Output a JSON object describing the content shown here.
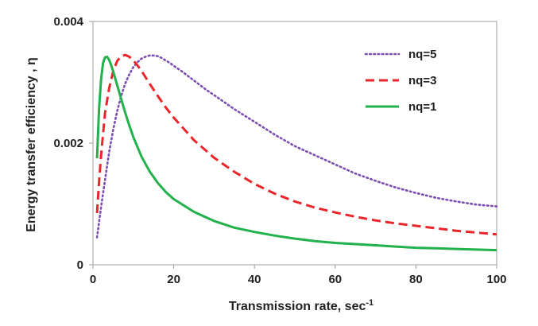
{
  "chart_data": {
    "type": "line",
    "title": "",
    "xlabel": "Transmission rate, sec",
    "xlabel_superscript": "-1",
    "ylabel": "Energy transfer efficiency , η",
    "xlim": [
      0,
      100
    ],
    "ylim": [
      0,
      0.004
    ],
    "x_ticks": [
      0,
      20,
      40,
      60,
      80,
      100
    ],
    "x_tick_labels": [
      "0",
      "20",
      "40",
      "60",
      "80",
      "100"
    ],
    "y_ticks": [
      0,
      0.002,
      0.004
    ],
    "y_tick_labels": [
      "0",
      "0.002",
      "0.004"
    ],
    "grid": false,
    "legend_position": "top-right",
    "series": [
      {
        "name": "nq=5",
        "color": "#7B4FB0",
        "style": "dotted",
        "x": [
          1,
          2,
          3,
          4,
          5,
          6,
          7,
          8,
          9,
          10,
          11,
          12,
          13,
          14,
          15,
          16,
          17,
          18,
          19,
          20,
          22,
          25,
          28,
          30,
          35,
          40,
          45,
          50,
          55,
          60,
          65,
          70,
          75,
          80,
          85,
          90,
          95,
          100
        ],
        "values": [
          0.00045,
          0.00095,
          0.0014,
          0.00185,
          0.00222,
          0.00253,
          0.00278,
          0.00298,
          0.00313,
          0.00325,
          0.00333,
          0.00339,
          0.00342,
          0.00344,
          0.00344,
          0.00343,
          0.0034,
          0.00336,
          0.00332,
          0.00327,
          0.00318,
          0.00303,
          0.00288,
          0.00279,
          0.00256,
          0.00235,
          0.00214,
          0.00195,
          0.0018,
          0.00165,
          0.0015,
          0.00138,
          0.00127,
          0.00118,
          0.0011,
          0.00104,
          0.00099,
          0.00096
        ]
      },
      {
        "name": "nq=3",
        "color": "#E8262B",
        "style": "dashed",
        "x": [
          1,
          1.5,
          2,
          3,
          4,
          5,
          6,
          7,
          8,
          9,
          10,
          11,
          12,
          14,
          16,
          18,
          20,
          25,
          30,
          35,
          40,
          45,
          50,
          55,
          60,
          65,
          70,
          75,
          80,
          85,
          90,
          95,
          100
        ],
        "values": [
          0.00085,
          0.00135,
          0.0018,
          0.0025,
          0.0029,
          0.00318,
          0.00335,
          0.00343,
          0.00345,
          0.00342,
          0.00336,
          0.00328,
          0.00319,
          0.00298,
          0.00278,
          0.00259,
          0.00242,
          0.00205,
          0.00176,
          0.00153,
          0.00133,
          0.00117,
          0.00104,
          0.00094,
          0.00086,
          0.00079,
          0.00073,
          0.00068,
          0.00064,
          0.0006,
          0.00056,
          0.00053,
          0.0005
        ]
      },
      {
        "name": "nq=1",
        "color": "#22B14C",
        "style": "solid",
        "x": [
          1,
          1.5,
          2,
          2.5,
          3,
          3.5,
          4,
          4.5,
          5,
          6,
          7,
          8,
          9,
          10,
          12,
          14,
          16,
          18,
          20,
          25,
          30,
          35,
          40,
          45,
          50,
          55,
          60,
          65,
          70,
          75,
          80,
          85,
          90,
          95,
          100
        ],
        "values": [
          0.00175,
          0.00255,
          0.00305,
          0.00332,
          0.00341,
          0.00342,
          0.00337,
          0.00328,
          0.00318,
          0.00295,
          0.00272,
          0.0025,
          0.00229,
          0.0021,
          0.00178,
          0.00154,
          0.00135,
          0.0012,
          0.00108,
          0.00087,
          0.00072,
          0.00061,
          0.00054,
          0.00048,
          0.00043,
          0.00039,
          0.00036,
          0.00034,
          0.00032,
          0.0003,
          0.00028,
          0.00027,
          0.00026,
          0.00025,
          0.00024
        ]
      }
    ]
  }
}
